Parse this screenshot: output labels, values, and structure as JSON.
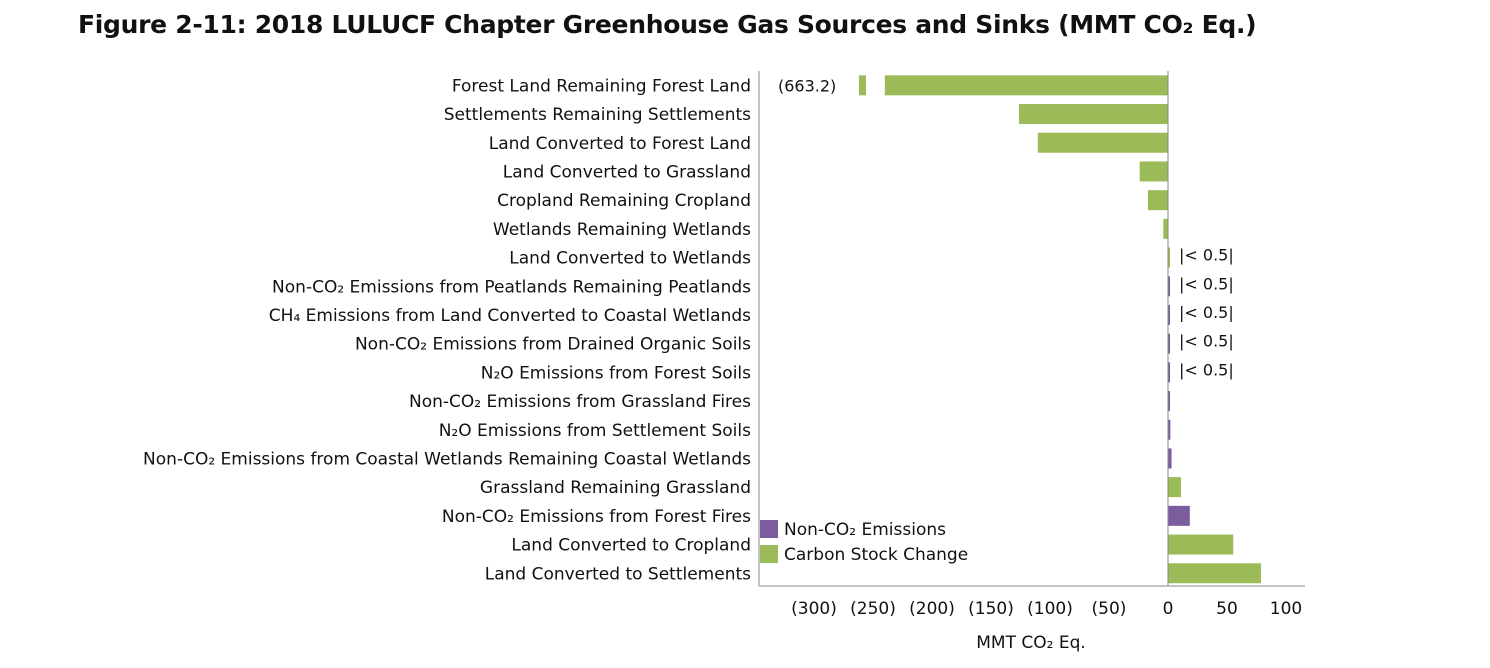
{
  "title": "Figure 2-11:  2018 LULUCF Chapter Greenhouse Gas Sources and Sinks (MMT CO₂ Eq.)",
  "colors": {
    "carbon": "#9BBB59",
    "nonco2": "#7B5C9E",
    "axis": "#888888"
  },
  "chart_data": {
    "type": "bar",
    "orientation": "horizontal",
    "xlabel": "MMT CO₂ Eq.",
    "xlim": [
      -350,
      117
    ],
    "xticks": [
      -300,
      -250,
      -200,
      -150,
      -100,
      -50,
      0,
      50,
      100
    ],
    "xtick_labels": [
      "(300)",
      "(250)",
      "(200)",
      "(150)",
      "(100)",
      "(50)",
      "0",
      "50",
      "100"
    ],
    "legend": {
      "position": "bottom-left",
      "entries": [
        {
          "name": "Non-CO₂ Emissions",
          "color": "#7B5C9E"
        },
        {
          "name": "Carbon Stock Change",
          "color": "#9BBB59"
        }
      ]
    },
    "axis_break": {
      "category_index": 0,
      "label": "(663.2)",
      "true_value": -663.2
    },
    "categories": [
      {
        "label": "Forest Land Remaining Forest Land",
        "value": -663.2,
        "series": "Carbon Stock Change",
        "annotation": "(663.2)"
      },
      {
        "label": "Settlements Remaining Settlements",
        "value": -126.3,
        "series": "Carbon Stock Change",
        "annotation": ""
      },
      {
        "label": "Land Converted to Forest Land",
        "value": -110.3,
        "series": "Carbon Stock Change",
        "annotation": ""
      },
      {
        "label": "Land Converted to Grassland",
        "value": -24.0,
        "series": "Carbon Stock Change",
        "annotation": ""
      },
      {
        "label": "Cropland Remaining Cropland",
        "value": -17.0,
        "series": "Carbon Stock Change",
        "annotation": ""
      },
      {
        "label": "Wetlands Remaining Wetlands",
        "value": -4.0,
        "series": "Carbon Stock Change",
        "annotation": ""
      },
      {
        "label": "Land Converted to Wetlands",
        "value": 0.4,
        "series": "Carbon Stock Change",
        "annotation": "|< 0.5|"
      },
      {
        "label": "Non-CO₂ Emissions from Peatlands Remaining Peatlands",
        "value": 0.4,
        "series": "Non-CO₂ Emissions",
        "annotation": "|< 0.5|"
      },
      {
        "label": "CH₄ Emissions from Land Converted to Coastal Wetlands",
        "value": 0.4,
        "series": "Non-CO₂ Emissions",
        "annotation": "|< 0.5|"
      },
      {
        "label": "Non-CO₂ Emissions from Drained Organic Soils",
        "value": 0.4,
        "series": "Non-CO₂ Emissions",
        "annotation": "|< 0.5|"
      },
      {
        "label": "N₂O Emissions from Forest Soils",
        "value": 0.4,
        "series": "Non-CO₂ Emissions",
        "annotation": "|< 0.5|"
      },
      {
        "label": "Non-CO₂ Emissions from Grassland Fires",
        "value": 0.8,
        "series": "Non-CO₂ Emissions",
        "annotation": ""
      },
      {
        "label": "N₂O Emissions from Settlement Soils",
        "value": 2.0,
        "series": "Non-CO₂ Emissions",
        "annotation": ""
      },
      {
        "label": "Non-CO₂ Emissions from Coastal Wetlands Remaining Coastal Wetlands",
        "value": 3.0,
        "series": "Non-CO₂ Emissions",
        "annotation": ""
      },
      {
        "label": "Grassland Remaining Grassland",
        "value": 11.0,
        "series": "Carbon Stock Change",
        "annotation": ""
      },
      {
        "label": "Non-CO₂ Emissions from Forest Fires",
        "value": 18.5,
        "series": "Non-CO₂ Emissions",
        "annotation": ""
      },
      {
        "label": "Land Converted to Cropland",
        "value": 55.3,
        "series": "Carbon Stock Change",
        "annotation": ""
      },
      {
        "label": "Land Converted to Settlements",
        "value": 78.8,
        "series": "Carbon Stock Change",
        "annotation": ""
      }
    ]
  }
}
